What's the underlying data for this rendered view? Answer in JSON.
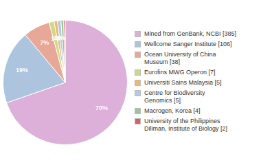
{
  "chart_data": {
    "type": "pie",
    "categories": [
      "Mined from GenBank, NCBI [385]",
      "Wellcome Sanger Institute [106]",
      "Ocean University of China\nMuseum [38]",
      "Eurofins MWG Operon [7]",
      "Universiti Sains Malaysia [5]",
      "Centre for Biodiversity\nGenomics [5]",
      "Macrogen, Korea [4]",
      "University of the Philippines\nDiliman, Institute of Biology [2]"
    ],
    "values": [
      69.7,
      19.2,
      6.9,
      1.3,
      0.9,
      0.9,
      0.7,
      0.4
    ],
    "value_labels": [
      "70%",
      "19%",
      "7%",
      "1%",
      "1%",
      "1%",
      null,
      null
    ],
    "colors": [
      "#dcb0d8",
      "#adc4de",
      "#e8a898",
      "#d0d888",
      "#f0b870",
      "#b4c8e4",
      "#98c898",
      "#d86060"
    ],
    "data_labels": true,
    "legend": "right"
  }
}
